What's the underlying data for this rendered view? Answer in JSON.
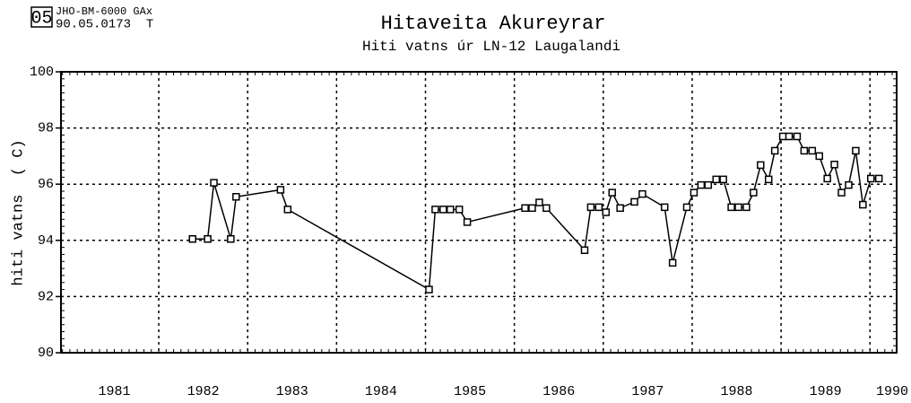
{
  "stamp": {
    "badge": "05",
    "code": "JHO-BM-6000 GAx",
    "ref": "90.05.0173  T"
  },
  "chart_data": {
    "type": "line",
    "title": "Hitaveita Akureyrar",
    "subtitle": "Hiti vatns úr LN-12 Laugalandi",
    "ylabel": "hiti vatns  ( C)",
    "color": "#000000",
    "marker": "square",
    "x": [
      1982.38,
      1982.55,
      1982.62,
      1982.81,
      1982.87,
      1983.37,
      1983.45,
      1985.04,
      1985.11,
      1985.2,
      1985.28,
      1985.38,
      1985.47,
      1986.12,
      1986.2,
      1986.28,
      1986.36,
      1986.79,
      1986.86,
      1986.95,
      1987.03,
      1987.1,
      1987.19,
      1987.35,
      1987.44,
      1987.69,
      1987.78,
      1987.94,
      1988.02,
      1988.1,
      1988.18,
      1988.27,
      1988.35,
      1988.44,
      1988.52,
      1988.61,
      1988.69,
      1988.77,
      1988.86,
      1988.93,
      1989.02,
      1989.09,
      1989.18,
      1989.26,
      1989.35,
      1989.43,
      1989.52,
      1989.6,
      1989.68,
      1989.76,
      1989.84,
      1989.92,
      1990.01,
      1990.1
    ],
    "values": [
      94.05,
      94.05,
      96.05,
      94.05,
      95.55,
      95.8,
      95.1,
      92.25,
      95.1,
      95.1,
      95.1,
      95.1,
      94.65,
      95.15,
      95.15,
      95.35,
      95.15,
      93.65,
      95.18,
      95.18,
      95.0,
      95.7,
      95.15,
      95.37,
      95.65,
      95.18,
      93.2,
      95.18,
      95.7,
      95.97,
      95.97,
      96.17,
      96.17,
      95.18,
      95.18,
      95.18,
      95.7,
      96.68,
      96.17,
      97.19,
      97.7,
      97.7,
      97.7,
      97.19,
      97.19,
      97.0,
      96.2,
      96.7,
      95.7,
      95.97,
      97.19,
      95.27,
      96.2,
      96.2
    ],
    "xlim": [
      1980.9,
      1990.3
    ],
    "xticks": [
      {
        "value": 1981.5,
        "label": "1981"
      },
      {
        "value": 1982.5,
        "label": "1982"
      },
      {
        "value": 1983.5,
        "label": "1983"
      },
      {
        "value": 1984.5,
        "label": "1984"
      },
      {
        "value": 1985.5,
        "label": "1985"
      },
      {
        "value": 1986.5,
        "label": "1986"
      },
      {
        "value": 1987.5,
        "label": "1987"
      },
      {
        "value": 1988.5,
        "label": "1988"
      },
      {
        "value": 1989.5,
        "label": "1989"
      },
      {
        "value": 1990.25,
        "label": "1990"
      }
    ],
    "xgrid": [
      1982,
      1983,
      1984,
      1985,
      1986,
      1987,
      1988,
      1989,
      1990
    ],
    "ylim": [
      90,
      100
    ],
    "yticks": [
      90,
      92,
      94,
      96,
      98,
      100
    ],
    "grid": true
  }
}
